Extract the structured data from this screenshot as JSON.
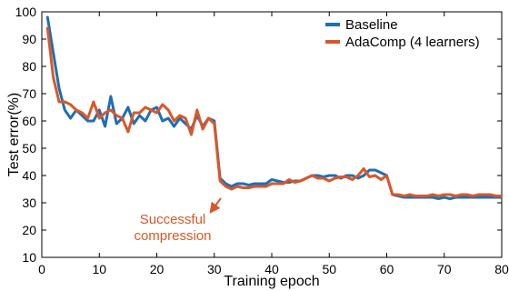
{
  "chart_data": {
    "type": "line",
    "title": "",
    "xlabel": "Training epoch",
    "ylabel": "Test error(%)",
    "xlim": [
      0,
      80
    ],
    "ylim": [
      10,
      100
    ],
    "xticks": [
      0,
      10,
      20,
      30,
      40,
      50,
      60,
      70,
      80
    ],
    "yticks": [
      10,
      20,
      30,
      40,
      50,
      60,
      70,
      80,
      90,
      100
    ],
    "grid": false,
    "legend_position": "top-right",
    "series": [
      {
        "name": "Baseline",
        "color": "#1f6fb4",
        "x": [
          1,
          2,
          3,
          4,
          5,
          6,
          7,
          8,
          9,
          10,
          11,
          12,
          13,
          14,
          15,
          16,
          17,
          18,
          19,
          20,
          21,
          22,
          23,
          24,
          25,
          26,
          27,
          28,
          29,
          30,
          31,
          32,
          33,
          34,
          35,
          36,
          37,
          38,
          39,
          40,
          41,
          42,
          43,
          44,
          45,
          46,
          47,
          48,
          49,
          50,
          51,
          52,
          53,
          54,
          55,
          56,
          57,
          58,
          59,
          60,
          61,
          62,
          63,
          64,
          65,
          66,
          67,
          68,
          69,
          70,
          71,
          72,
          73,
          74,
          75,
          76,
          77,
          78,
          79,
          80
        ],
        "y": [
          98,
          85,
          72,
          64,
          61,
          64,
          62,
          60,
          60,
          64,
          58,
          69,
          59,
          61,
          65,
          59,
          62,
          60,
          64,
          65,
          60,
          61,
          58,
          61,
          59,
          57,
          62,
          58,
          61,
          60,
          39,
          37,
          36,
          37,
          37,
          36.5,
          37,
          37,
          37,
          38.5,
          38,
          37.5,
          37.5,
          38,
          38,
          39,
          40,
          40,
          39.5,
          40,
          40,
          39,
          40,
          40,
          39,
          40,
          42,
          42,
          41,
          40,
          33,
          32.5,
          32,
          32,
          32,
          32,
          32,
          32,
          31.5,
          32,
          31.5,
          32,
          32,
          32,
          32,
          32,
          32,
          32,
          32,
          32
        ]
      },
      {
        "name": "AdaComp (4 learners)",
        "color": "#d9582a",
        "x": [
          1,
          2,
          3,
          4,
          5,
          6,
          7,
          8,
          9,
          10,
          11,
          12,
          13,
          14,
          15,
          16,
          17,
          18,
          19,
          20,
          21,
          22,
          23,
          24,
          25,
          26,
          27,
          28,
          29,
          30,
          31,
          32,
          33,
          34,
          35,
          36,
          37,
          38,
          39,
          40,
          41,
          42,
          43,
          44,
          45,
          46,
          47,
          48,
          49,
          50,
          51,
          52,
          53,
          54,
          55,
          56,
          57,
          58,
          59,
          60,
          61,
          62,
          63,
          64,
          65,
          66,
          67,
          68,
          69,
          70,
          71,
          72,
          73,
          74,
          75,
          76,
          77,
          78,
          79,
          80
        ],
        "y": [
          94,
          76,
          67,
          67,
          66,
          64,
          63,
          61,
          67,
          61,
          63,
          64,
          62,
          61,
          56,
          63,
          63,
          65,
          64,
          63,
          66,
          64,
          60,
          62,
          61,
          55,
          64,
          57,
          61,
          59,
          38,
          36,
          35,
          36,
          35.5,
          35.5,
          36,
          36,
          36,
          37,
          37,
          37,
          38.5,
          37.5,
          38,
          39,
          40,
          39,
          39,
          38,
          39,
          39.5,
          39.5,
          38.5,
          40,
          42.5,
          39.5,
          40,
          38.5,
          40,
          33,
          33,
          32.5,
          33,
          32.5,
          32.5,
          32.5,
          33,
          32.5,
          33,
          33,
          32.5,
          33,
          33,
          32.5,
          33,
          33,
          33,
          32.5,
          32.5
        ]
      }
    ],
    "annotations": [
      {
        "text_lines": [
          "Successful",
          "compression"
        ],
        "color": "#d9582a",
        "arrow_to": [
          29.5,
          27
        ]
      }
    ]
  }
}
